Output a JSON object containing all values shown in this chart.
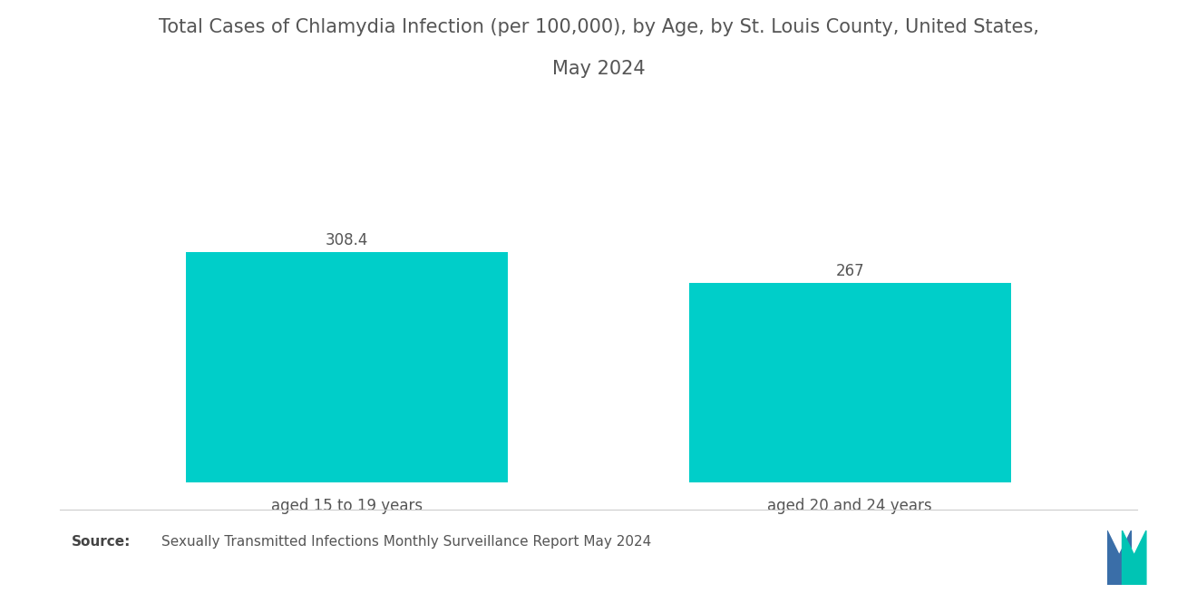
{
  "title_line1": "Total Cases of Chlamydia Infection (per 100,000), by Age, by St. Louis County, United States,",
  "title_line2": "May 2024",
  "categories": [
    "aged 15 to 19 years",
    "aged 20 and 24 years"
  ],
  "values": [
    308.4,
    267
  ],
  "value_labels": [
    "308.4",
    "267"
  ],
  "bar_color": "#00CEC9",
  "background_color": "#ffffff",
  "title_fontsize": 15,
  "label_fontsize": 12,
  "value_fontsize": 12,
  "source_text": "Sexually Transmitted Infections Monthly Surveillance Report May 2024",
  "source_label": "Source:",
  "ylim": [
    0,
    420
  ],
  "separator_color": "#cccccc",
  "text_color": "#555555",
  "source_bold_color": "#444444",
  "logo_dark": "#3A6EA8",
  "logo_teal": "#00C4B4"
}
